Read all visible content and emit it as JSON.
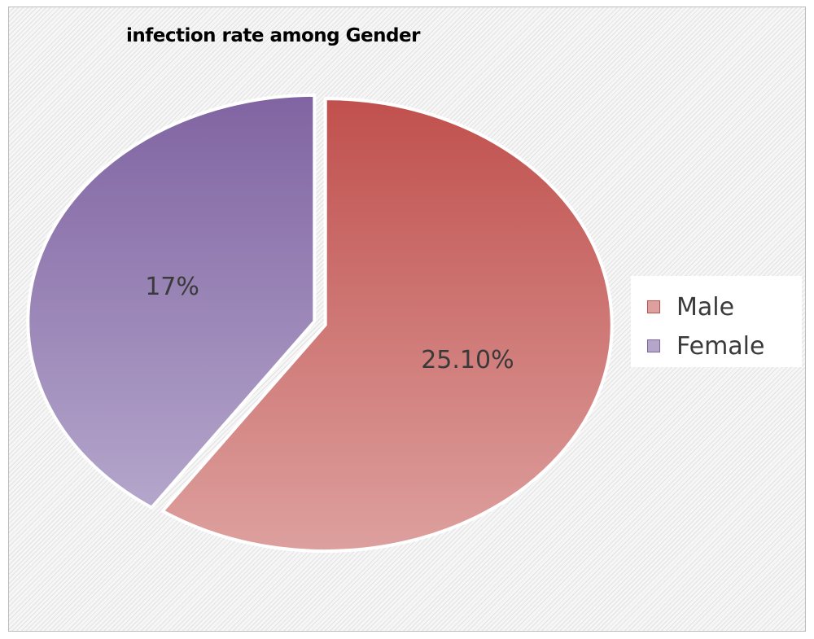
{
  "chart_data": {
    "type": "pie",
    "title": "infection rate among Gender",
    "categories": [
      "Male",
      "Female"
    ],
    "values": [
      25.1,
      17
    ],
    "labels": [
      "25.10%",
      "17%"
    ],
    "colors": [
      "#c0504d",
      "#8064a2"
    ],
    "colors_light": [
      "#dda09e",
      "#b4a6cb"
    ],
    "legend_position": "right",
    "exploded": true
  }
}
